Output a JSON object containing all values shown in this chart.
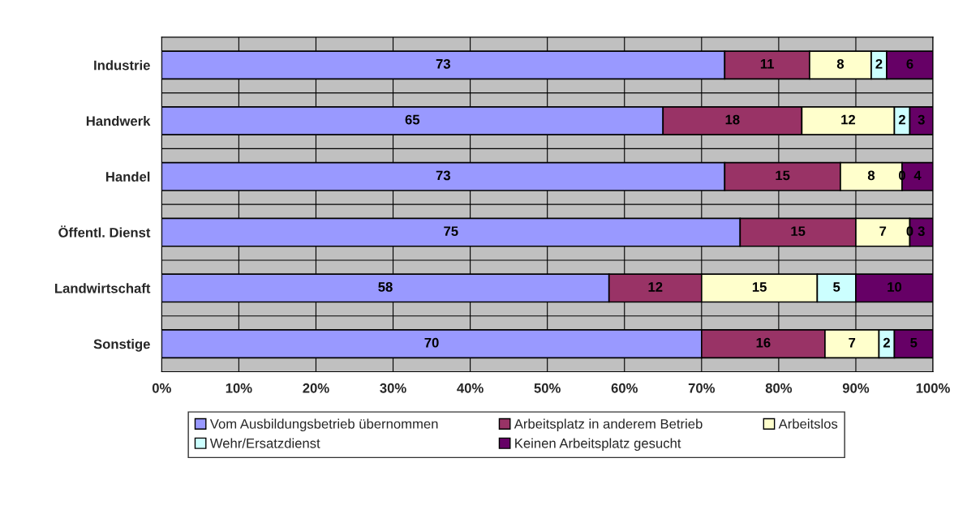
{
  "chart_data": {
    "type": "bar",
    "orientation": "horizontal",
    "stacked": true,
    "categories": [
      "Industrie",
      "Handwerk",
      "Handel",
      "Öffentl. Dienst",
      "Landwirtschaft",
      "Sonstige"
    ],
    "series": [
      {
        "name": "Vom Ausbildungsbetrieb übernommen",
        "color": "#9999ff",
        "values": [
          73,
          65,
          73,
          75,
          58,
          70
        ]
      },
      {
        "name": "Arbeitsplatz in anderem Betrieb",
        "color": "#993366",
        "values": [
          11,
          18,
          15,
          15,
          12,
          16
        ]
      },
      {
        "name": "Arbeitslos",
        "color": "#ffffcc",
        "values": [
          8,
          12,
          8,
          7,
          15,
          7
        ]
      },
      {
        "name": "Wehr/Ersatzdienst",
        "color": "#ccffff",
        "values": [
          2,
          2,
          0,
          0,
          5,
          2
        ]
      },
      {
        "name": "Keinen Arbeitsplatz gesucht",
        "color": "#660066",
        "values": [
          6,
          3,
          4,
          3,
          10,
          5
        ]
      }
    ],
    "xlim": [
      0,
      100
    ],
    "xticks": [
      {
        "value": 0,
        "label": "0%"
      },
      {
        "value": 10,
        "label": "10%"
      },
      {
        "value": 20,
        "label": "20%"
      },
      {
        "value": 30,
        "label": "30%"
      },
      {
        "value": 40,
        "label": "40%"
      },
      {
        "value": 50,
        "label": "50%"
      },
      {
        "value": 60,
        "label": "60%"
      },
      {
        "value": 70,
        "label": "70%"
      },
      {
        "value": 80,
        "label": "80%"
      },
      {
        "value": 90,
        "label": "90%"
      },
      {
        "value": 100,
        "label": "100%"
      }
    ],
    "data_labels": true,
    "grid": true,
    "legend": "bottom"
  }
}
